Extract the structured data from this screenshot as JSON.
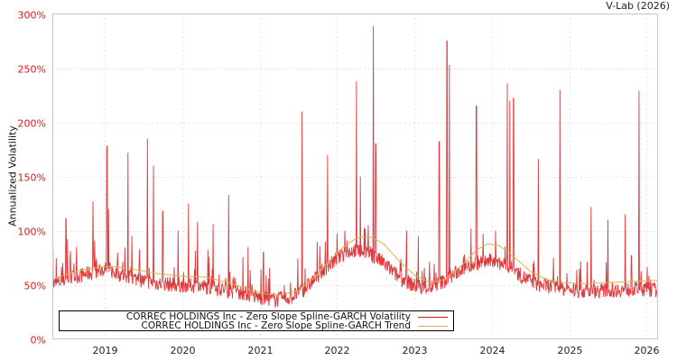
{
  "header": {
    "credit": "V-Lab (2026)"
  },
  "chart_data": {
    "type": "line",
    "title": "",
    "xlabel": "",
    "ylabel": "Annualized Volatility",
    "ylim": [
      0,
      300
    ],
    "xlim": [
      2018.33,
      2026.14
    ],
    "grid": true,
    "legend_position": "lower left",
    "y_ticks": [
      "0%",
      "50%",
      "100%",
      "150%",
      "200%",
      "250%",
      "300%"
    ],
    "x_ticks": [
      "2019",
      "2020",
      "2021",
      "2022",
      "2023",
      "2024",
      "2025",
      "2026"
    ],
    "series": [
      {
        "name": "CORREC HOLDINGS Inc - Zero Slope Spline-GARCH Volatility",
        "color": "#d7191c",
        "baseline": [
          [
            2018.33,
            48
          ],
          [
            2018.6,
            55
          ],
          [
            2018.9,
            60
          ],
          [
            2019.0,
            62
          ],
          [
            2019.3,
            55
          ],
          [
            2019.6,
            50
          ],
          [
            2019.9,
            48
          ],
          [
            2020.2,
            47
          ],
          [
            2020.5,
            44
          ],
          [
            2020.8,
            40
          ],
          [
            2021.0,
            36
          ],
          [
            2021.2,
            34
          ],
          [
            2021.4,
            36
          ],
          [
            2021.6,
            45
          ],
          [
            2021.8,
            60
          ],
          [
            2022.0,
            72
          ],
          [
            2022.2,
            80
          ],
          [
            2022.4,
            78
          ],
          [
            2022.6,
            68
          ],
          [
            2022.8,
            55
          ],
          [
            2023.0,
            47
          ],
          [
            2023.2,
            45
          ],
          [
            2023.4,
            52
          ],
          [
            2023.6,
            62
          ],
          [
            2023.8,
            68
          ],
          [
            2024.0,
            70
          ],
          [
            2024.2,
            66
          ],
          [
            2024.4,
            55
          ],
          [
            2024.6,
            48
          ],
          [
            2024.8,
            46
          ],
          [
            2025.0,
            43
          ],
          [
            2025.3,
            42
          ],
          [
            2025.6,
            43
          ],
          [
            2025.9,
            44
          ],
          [
            2026.14,
            43
          ]
        ],
        "spikes": [
          [
            2018.33,
            100
          ],
          [
            2018.5,
            111
          ],
          [
            2018.52,
            92
          ],
          [
            2018.85,
            127
          ],
          [
            2019.03,
            178
          ],
          [
            2019.05,
            120
          ],
          [
            2019.3,
            172
          ],
          [
            2019.35,
            95
          ],
          [
            2019.55,
            185
          ],
          [
            2019.63,
            160
          ],
          [
            2019.75,
            118
          ],
          [
            2019.95,
            100
          ],
          [
            2020.08,
            125
          ],
          [
            2020.2,
            108
          ],
          [
            2020.4,
            106
          ],
          [
            2020.6,
            133
          ],
          [
            2020.85,
            85
          ],
          [
            2021.05,
            80
          ],
          [
            2021.55,
            210
          ],
          [
            2021.85,
            90
          ],
          [
            2021.88,
            170
          ],
          [
            2022.1,
            100
          ],
          [
            2022.25,
            238
          ],
          [
            2022.3,
            150
          ],
          [
            2022.47,
            289
          ],
          [
            2022.5,
            180
          ],
          [
            2022.9,
            100
          ],
          [
            2023.05,
            95
          ],
          [
            2023.32,
            182
          ],
          [
            2023.42,
            275
          ],
          [
            2023.45,
            253
          ],
          [
            2023.8,
            215
          ],
          [
            2024.05,
            100
          ],
          [
            2024.2,
            236
          ],
          [
            2024.23,
            220
          ],
          [
            2024.28,
            222
          ],
          [
            2024.6,
            166
          ],
          [
            2024.88,
            230
          ],
          [
            2025.28,
            122
          ],
          [
            2025.5,
            110
          ],
          [
            2025.72,
            115
          ],
          [
            2025.9,
            229
          ],
          [
            2026.05,
            55
          ]
        ]
      },
      {
        "name": "CORREC HOLDINGS Inc - Zero Slope Spline-GARCH Trend",
        "color": "#d9b44a",
        "values": [
          [
            2018.33,
            55
          ],
          [
            2018.6,
            62
          ],
          [
            2018.9,
            66
          ],
          [
            2019.1,
            67
          ],
          [
            2019.4,
            64
          ],
          [
            2019.7,
            60
          ],
          [
            2020.0,
            58
          ],
          [
            2020.3,
            57
          ],
          [
            2020.6,
            52
          ],
          [
            2020.9,
            45
          ],
          [
            2021.1,
            41
          ],
          [
            2021.3,
            41
          ],
          [
            2021.5,
            45
          ],
          [
            2021.7,
            56
          ],
          [
            2021.9,
            72
          ],
          [
            2022.1,
            86
          ],
          [
            2022.25,
            93
          ],
          [
            2022.4,
            95
          ],
          [
            2022.6,
            88
          ],
          [
            2022.8,
            72
          ],
          [
            2023.0,
            59
          ],
          [
            2023.2,
            52
          ],
          [
            2023.4,
            55
          ],
          [
            2023.6,
            67
          ],
          [
            2023.8,
            82
          ],
          [
            2023.95,
            88
          ],
          [
            2024.1,
            86
          ],
          [
            2024.3,
            75
          ],
          [
            2024.5,
            62
          ],
          [
            2024.7,
            55
          ],
          [
            2024.9,
            52
          ],
          [
            2025.2,
            51
          ],
          [
            2025.5,
            52
          ],
          [
            2025.8,
            53
          ],
          [
            2026.14,
            54
          ]
        ]
      }
    ]
  },
  "legend": {
    "items": [
      {
        "label": "CORREC HOLDINGS Inc - Zero Slope Spline-GARCH Volatility",
        "color": "#d7191c"
      },
      {
        "label": "CORREC HOLDINGS Inc - Zero Slope Spline-GARCH Trend",
        "color": "#d9b44a"
      }
    ]
  }
}
